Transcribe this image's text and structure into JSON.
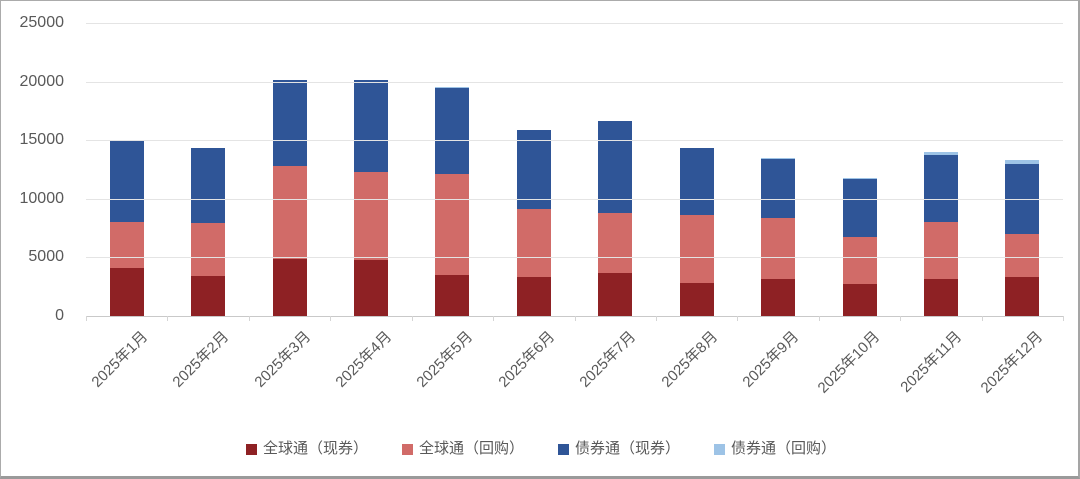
{
  "chart_data": {
    "type": "bar",
    "stacked": true,
    "title": "",
    "categories": [
      "2025年1月",
      "2025年2月",
      "2025年3月",
      "2025年4月",
      "2025年5月",
      "2025年6月",
      "2025年7月",
      "2025年8月",
      "2025年9月",
      "2025年10月",
      "2025年11月",
      "2025年12月"
    ],
    "series": [
      {
        "name": "全球通（现券）",
        "color": "#8e2124",
        "values": [
          4100,
          3400,
          4900,
          4800,
          3500,
          3300,
          3700,
          2800,
          3200,
          2700,
          3200,
          3300
        ]
      },
      {
        "name": "全球通（回购）",
        "color": "#d16b68",
        "values": [
          3900,
          4500,
          7900,
          7500,
          8600,
          5800,
          5100,
          5800,
          5200,
          4000,
          4800,
          3700
        ]
      },
      {
        "name": "债券通（现券）",
        "color": "#2f5597",
        "values": [
          6900,
          6400,
          7300,
          7800,
          7350,
          6750,
          7800,
          5700,
          5000,
          4950,
          5750,
          6000
        ]
      },
      {
        "name": "债券通（回购）",
        "color": "#9dc3e6",
        "values": [
          50,
          50,
          50,
          50,
          50,
          50,
          50,
          50,
          50,
          100,
          250,
          300
        ]
      }
    ],
    "totals": [
      14950,
      14350,
      20150,
      20150,
      19500,
      15900,
      16650,
      14350,
      13450,
      11750,
      14000,
      13300
    ],
    "ylim": [
      0,
      25000
    ],
    "y_ticks": [
      0,
      5000,
      10000,
      15000,
      20000,
      25000
    ],
    "y_tick_labels": [
      "0",
      "5000",
      "10000",
      "15000",
      "20000",
      "25000"
    ],
    "grid": true,
    "legend_position": "bottom",
    "axis_text_color": "#595959"
  }
}
